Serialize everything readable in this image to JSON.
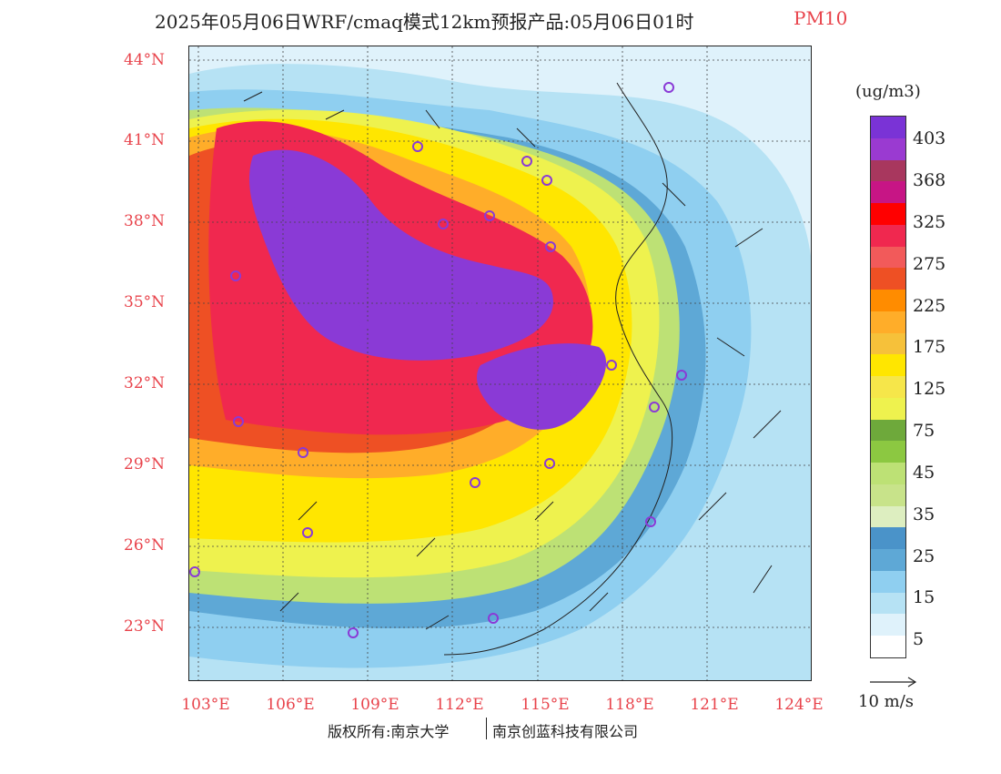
{
  "title": {
    "main": "2025年05月06日WRF/cmaq模式12km预报产品:05月06日01时",
    "variable": "PM10",
    "variable_color": "#e8434b"
  },
  "map": {
    "lat_labels": [
      "44°N",
      "41°N",
      "38°N",
      "35°N",
      "32°N",
      "29°N",
      "26°N",
      "23°N"
    ],
    "lon_labels": [
      "103°E",
      "106°E",
      "109°E",
      "112°E",
      "115°E",
      "118°E",
      "121°E",
      "124°E"
    ],
    "label_color": "#e8434b",
    "pollution_core_color": "#8a3ad6",
    "city_marker_color": "#8a3ad6"
  },
  "legend": {
    "unit": "(ug/m3)",
    "labels": [
      "403",
      "368",
      "325",
      "275",
      "225",
      "175",
      "125",
      "75",
      "45",
      "35",
      "25",
      "15",
      "5"
    ],
    "colors": [
      "#7a33d6",
      "#9a3ad1",
      "#a8375e",
      "#c71585",
      "#ff0000",
      "#f0284f",
      "#f25a5a",
      "#ee5024",
      "#ff8c00",
      "#ffad29",
      "#f6c13a",
      "#ffe600",
      "#f6e64a",
      "#eef24e",
      "#6ea93b",
      "#8cc841",
      "#bde175",
      "#c8e38a",
      "#ddeec0",
      "#4a93c9",
      "#5ea8d6",
      "#8fcff0",
      "#b6e2f4",
      "#dff2fb",
      "#ffffff"
    ]
  },
  "wind_reference": {
    "label": "10 m/s"
  },
  "footer": {
    "left": "版权所有:南京大学",
    "right": "南京创蓝科技有限公司"
  }
}
